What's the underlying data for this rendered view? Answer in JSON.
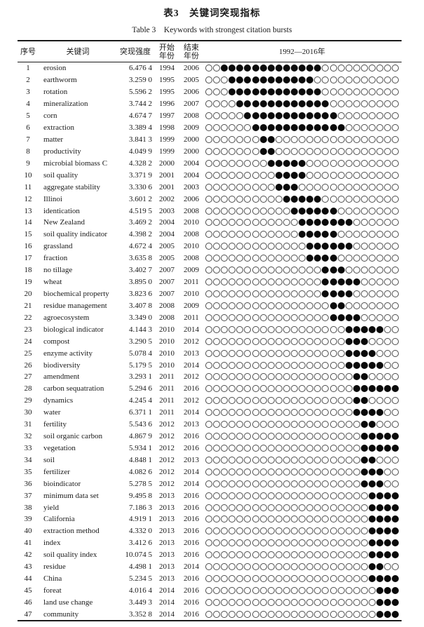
{
  "title": "表3　关键词突现指标",
  "subtitle": "Table 3　Keywords with strongest citation bursts",
  "columns": {
    "index": "序号",
    "keyword": "关键词",
    "strength": "突现强度",
    "start_line1": "开始",
    "start_line2": "年份",
    "end_line1": "结束",
    "end_line2": "年份",
    "timeline": "1992—2016年"
  },
  "timeline": {
    "from": 1992,
    "to": 2016
  },
  "colors": {
    "text": "#1a1a1a",
    "rule": "#1a1a1a",
    "dot_filled": "#0a0a0a",
    "dot_empty_border": "#4c4c4c"
  },
  "rows": [
    {
      "index": 1,
      "keyword": "erosion",
      "strength": "6.476 4",
      "start": 1994,
      "end": 2006
    },
    {
      "index": 2,
      "keyword": "earthworm",
      "strength": "3.259 0",
      "start": 1995,
      "end": 2005
    },
    {
      "index": 3,
      "keyword": "rotation",
      "strength": "5.596 2",
      "start": 1995,
      "end": 2006
    },
    {
      "index": 4,
      "keyword": "mineralization",
      "strength": "3.744 2",
      "start": 1996,
      "end": 2007
    },
    {
      "index": 5,
      "keyword": "corn",
      "strength": "4.674 7",
      "start": 1997,
      "end": 2008
    },
    {
      "index": 6,
      "keyword": "extraction",
      "strength": "3.389 4",
      "start": 1998,
      "end": 2009
    },
    {
      "index": 7,
      "keyword": "matter",
      "strength": "3.841 3",
      "start": 1999,
      "end": 2000
    },
    {
      "index": 8,
      "keyword": "productivity",
      "strength": "4.049 9",
      "start": 1999,
      "end": 2000
    },
    {
      "index": 9,
      "keyword": "microbial biomass C",
      "strength": "4.328 2",
      "start": 2000,
      "end": 2004
    },
    {
      "index": 10,
      "keyword": "soil quality",
      "strength": "3.371 9",
      "start": 2001,
      "end": 2004
    },
    {
      "index": 11,
      "keyword": "aggregate stability",
      "strength": "3.330 6",
      "start": 2001,
      "end": 2003
    },
    {
      "index": 12,
      "keyword": "Illinoi",
      "strength": "3.601 2",
      "start": 2002,
      "end": 2006
    },
    {
      "index": 13,
      "keyword": "identication",
      "strength": "4.519 5",
      "start": 2003,
      "end": 2008
    },
    {
      "index": 14,
      "keyword": "New Zealand",
      "strength": "3.469 2",
      "start": 2004,
      "end": 2010
    },
    {
      "index": 15,
      "keyword": "soil quality indicator",
      "strength": "4.398 2",
      "start": 2004,
      "end": 2008
    },
    {
      "index": 16,
      "keyword": "grassland",
      "strength": "4.672 4",
      "start": 2005,
      "end": 2010
    },
    {
      "index": 17,
      "keyword": "fraction",
      "strength": "3.635 8",
      "start": 2005,
      "end": 2008
    },
    {
      "index": 18,
      "keyword": "no tillage",
      "strength": "3.402 7",
      "start": 2007,
      "end": 2009
    },
    {
      "index": 19,
      "keyword": "wheat",
      "strength": "3.895 0",
      "start": 2007,
      "end": 2011
    },
    {
      "index": 20,
      "keyword": "biochemical property",
      "strength": "3.823 6",
      "start": 2007,
      "end": 2010
    },
    {
      "index": 21,
      "keyword": "residue management",
      "strength": "3.407 8",
      "start": 2008,
      "end": 2009
    },
    {
      "index": 22,
      "keyword": "agroecosystem",
      "strength": "3.349 0",
      "start": 2008,
      "end": 2011
    },
    {
      "index": 23,
      "keyword": "biological indicator",
      "strength": "4.144 3",
      "start": 2010,
      "end": 2014
    },
    {
      "index": 24,
      "keyword": "compost",
      "strength": "3.290 5",
      "start": 2010,
      "end": 2012
    },
    {
      "index": 25,
      "keyword": "enzyme activity",
      "strength": "5.078 4",
      "start": 2010,
      "end": 2013
    },
    {
      "index": 26,
      "keyword": "biodiversity",
      "strength": "5.179 5",
      "start": 2010,
      "end": 2014
    },
    {
      "index": 27,
      "keyword": "amendment",
      "strength": "3.293 1",
      "start": 2011,
      "end": 2012
    },
    {
      "index": 28,
      "keyword": "carbon sequatration",
      "strength": "5.294 6",
      "start": 2011,
      "end": 2016
    },
    {
      "index": 29,
      "keyword": "dynamics",
      "strength": "4.245 4",
      "start": 2011,
      "end": 2012
    },
    {
      "index": 30,
      "keyword": "water",
      "strength": "6.371 1",
      "start": 2011,
      "end": 2014
    },
    {
      "index": 31,
      "keyword": "fertility",
      "strength": "5.543 6",
      "start": 2012,
      "end": 2013
    },
    {
      "index": 32,
      "keyword": "soil organic carbon",
      "strength": "4.867 9",
      "start": 2012,
      "end": 2016
    },
    {
      "index": 33,
      "keyword": "vegetation",
      "strength": "5.934 1",
      "start": 2012,
      "end": 2016
    },
    {
      "index": 34,
      "keyword": "soil",
      "strength": "4.848 1",
      "start": 2012,
      "end": 2013
    },
    {
      "index": 35,
      "keyword": "fertilizer",
      "strength": "4.082 6",
      "start": 2012,
      "end": 2014
    },
    {
      "index": 36,
      "keyword": "bioindicator",
      "strength": "5.278 5",
      "start": 2012,
      "end": 2014
    },
    {
      "index": 37,
      "keyword": "minimum data set",
      "strength": "9.495 8",
      "start": 2013,
      "end": 2016
    },
    {
      "index": 38,
      "keyword": "yield",
      "strength": "7.186 3",
      "start": 2013,
      "end": 2016
    },
    {
      "index": 39,
      "keyword": "California",
      "strength": "4.919 1",
      "start": 2013,
      "end": 2016
    },
    {
      "index": 40,
      "keyword": "extraction method",
      "strength": "4.332 0",
      "start": 2013,
      "end": 2016
    },
    {
      "index": 41,
      "keyword": "index",
      "strength": "3.412 6",
      "start": 2013,
      "end": 2016
    },
    {
      "index": 42,
      "keyword": "soil quality index",
      "strength": "10.074 5",
      "start": 2013,
      "end": 2016
    },
    {
      "index": 43,
      "keyword": "residue",
      "strength": "4.498 1",
      "start": 2013,
      "end": 2014
    },
    {
      "index": 44,
      "keyword": "China",
      "strength": "5.234 5",
      "start": 2013,
      "end": 2016
    },
    {
      "index": 45,
      "keyword": "foreat",
      "strength": "4.016 4",
      "start": 2014,
      "end": 2016
    },
    {
      "index": 46,
      "keyword": "land use change",
      "strength": "3.449 3",
      "start": 2014,
      "end": 2016
    },
    {
      "index": 47,
      "keyword": "community",
      "strength": "3.352 8",
      "start": 2014,
      "end": 2016
    }
  ]
}
